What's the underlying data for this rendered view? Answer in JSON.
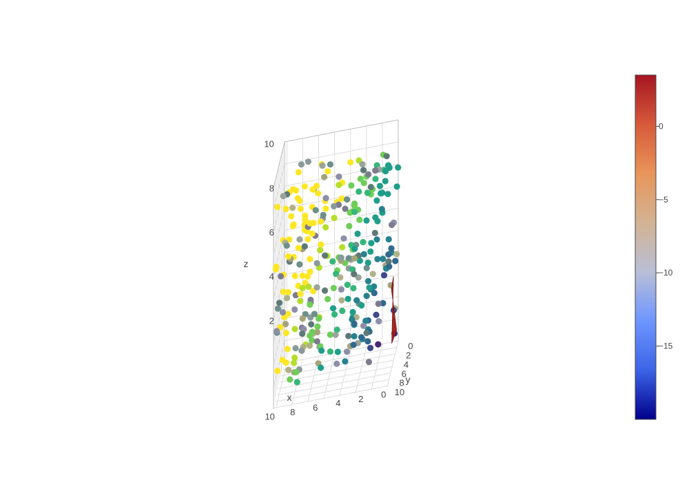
{
  "chart_data": {
    "type": "scatter3d",
    "title": "",
    "axes": {
      "x": {
        "label": "x",
        "range": [
          0,
          10
        ],
        "ticks": [
          "0",
          "2",
          "4",
          "6",
          "8",
          "10"
        ]
      },
      "y": {
        "label": "y",
        "range": [
          0,
          10
        ],
        "ticks": [
          "0",
          "2",
          "4",
          "6",
          "8",
          "10"
        ]
      },
      "z": {
        "label": "z",
        "range": [
          0,
          10
        ],
        "ticks": [
          "2",
          "4",
          "6",
          "8",
          "10"
        ]
      }
    },
    "grid": true,
    "marker_colorscale": "viridis",
    "surface": {
      "description": "red triangular surface near x=0 edge",
      "color": "#9b1c1c",
      "vertices": [
        [
          0.4,
          0.2,
          3.0
        ],
        [
          0.3,
          2.8,
          0.5
        ],
        [
          0.0,
          1.5,
          0.8
        ],
        [
          0.6,
          0.0,
          2.4
        ]
      ]
    },
    "colorbar": {
      "colorscale": [
        "#00008b",
        "#3c64e6",
        "#6e96ff",
        "#b9bfd6",
        "#d2b393",
        "#e8955a",
        "#d65a3a",
        "#a51521"
      ],
      "range": [
        -20,
        3.5
      ],
      "ticks": [
        {
          "value": 0,
          "label": "0"
        },
        {
          "value": -5,
          "label": "−5"
        },
        {
          "value": -10,
          "label": "−10"
        },
        {
          "value": -15,
          "label": "−15"
        }
      ]
    },
    "grid_levels_z": [
      1.0,
      2.0,
      3.0,
      4.0,
      5.0,
      6.0,
      7.0,
      8.0,
      9.0
    ],
    "grid_levels_xy": [
      0.0,
      1.4,
      2.8,
      4.2,
      5.6,
      7.0,
      8.4,
      9.8
    ]
  }
}
